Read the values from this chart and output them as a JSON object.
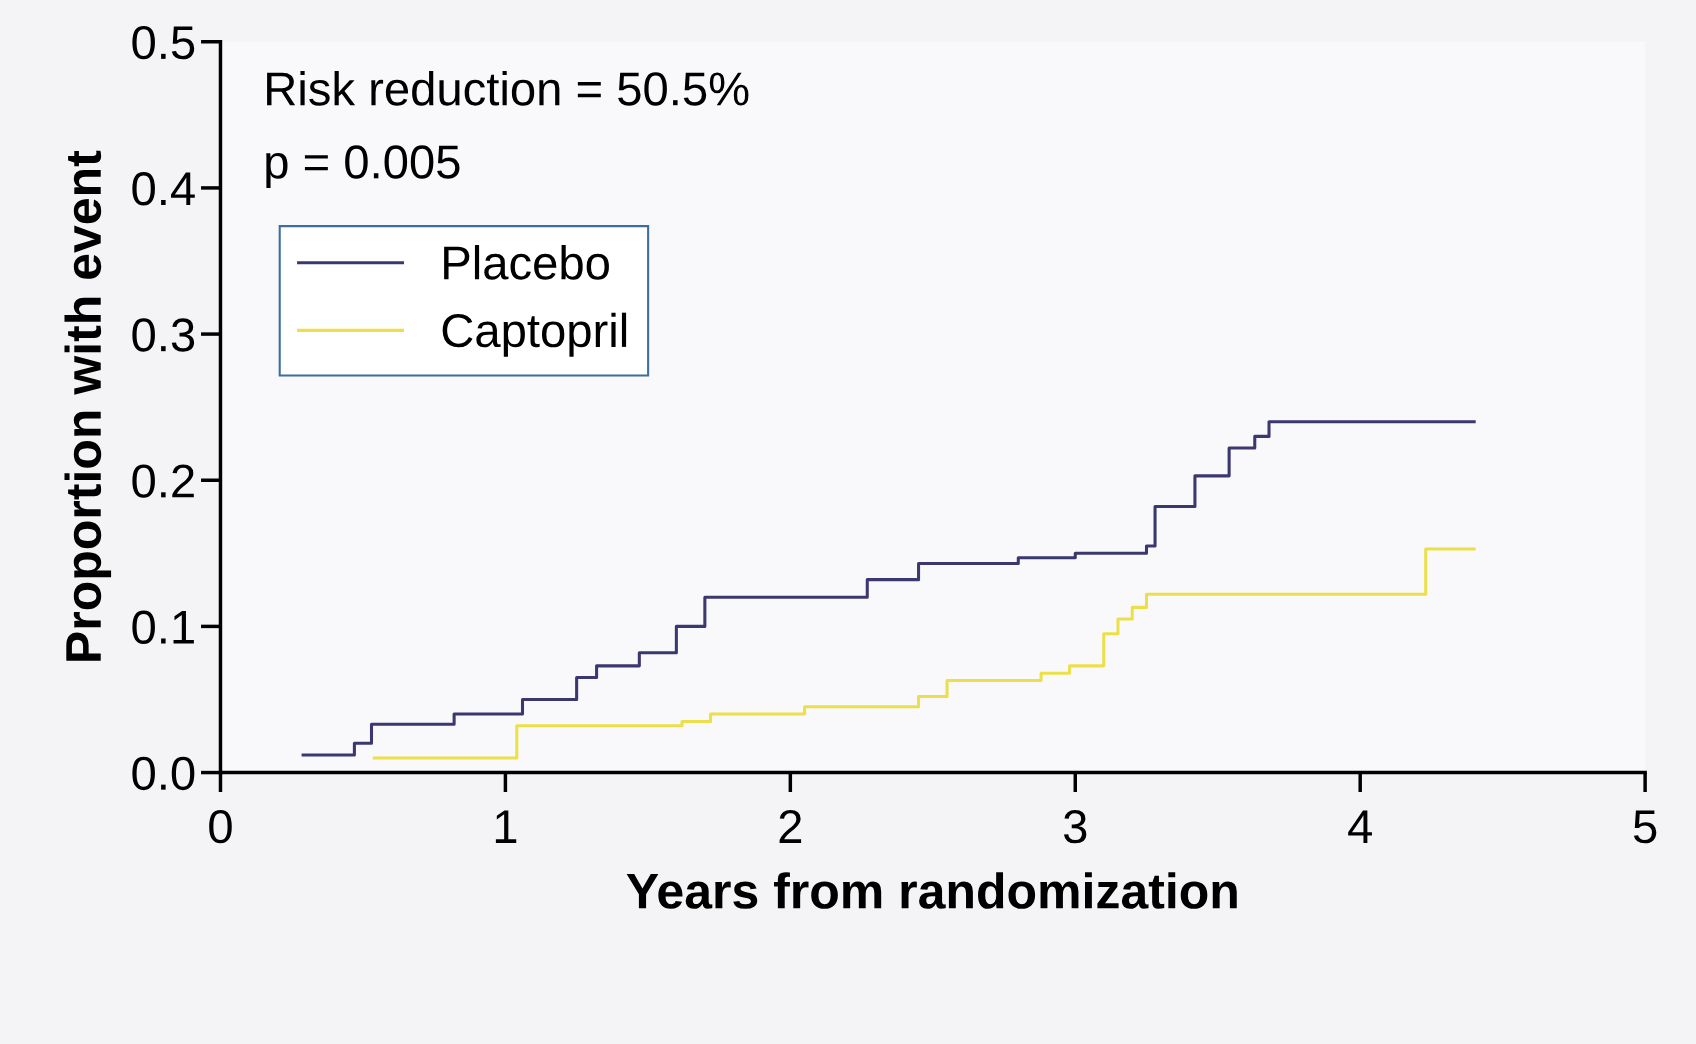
{
  "chart_data": {
    "type": "step",
    "xlabel": "Years from randomization",
    "ylabel": "Proportion with event",
    "series": [
      {
        "name": "Placebo",
        "color": "#3b3870",
        "x": [
          0.29,
          0.47,
          0.53,
          0.82,
          1.06,
          1.25,
          1.32,
          1.47,
          1.6,
          1.7,
          2.27,
          2.45,
          2.8,
          3.0,
          3.25,
          3.28,
          3.42,
          3.54,
          3.63,
          3.68,
          4.4
        ],
        "values": [
          0.012,
          0.02,
          0.033,
          0.04,
          0.05,
          0.065,
          0.073,
          0.082,
          0.1,
          0.12,
          0.132,
          0.143,
          0.147,
          0.15,
          0.155,
          0.182,
          0.203,
          0.222,
          0.23,
          0.24,
          0.24
        ]
      },
      {
        "name": "Captopril",
        "color": "#ece04a",
        "x": [
          0.54,
          1.04,
          1.62,
          1.72,
          2.05,
          2.45,
          2.55,
          2.88,
          2.98,
          3.1,
          3.15,
          3.2,
          3.25,
          4.23,
          4.4
        ],
        "values": [
          0.01,
          0.032,
          0.035,
          0.04,
          0.045,
          0.052,
          0.063,
          0.068,
          0.073,
          0.095,
          0.105,
          0.113,
          0.122,
          0.153,
          0.153
        ]
      }
    ],
    "xlim": [
      0,
      5
    ],
    "xticks": [
      0,
      1,
      2,
      3,
      4,
      5
    ],
    "ylim": [
      0,
      0.5
    ],
    "yticks": [
      {
        "value": 0,
        "label": "0.0"
      },
      0.1,
      0.2,
      0.3,
      0.4,
      0.5
    ],
    "annotations": [
      "Risk reduction = 50.5%",
      "p = 0.005"
    ],
    "legend": "top left",
    "grid": false,
    "line_style": "solid",
    "marker": "none"
  }
}
